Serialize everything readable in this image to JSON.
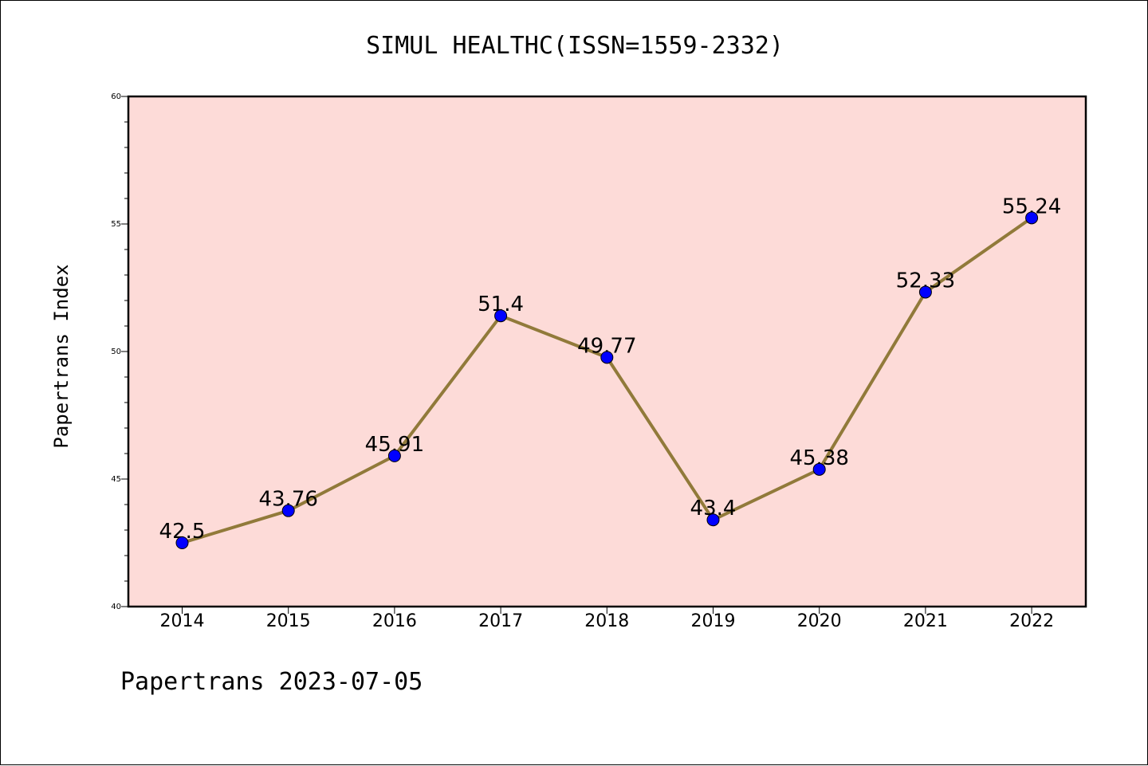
{
  "chart_data": {
    "type": "line",
    "title": "SIMUL HEALTHC(ISSN=1559-2332)",
    "xlabel": "",
    "ylabel": "Papertrans Index",
    "categories": [
      "2014",
      "2015",
      "2016",
      "2017",
      "2018",
      "2019",
      "2020",
      "2021",
      "2022"
    ],
    "series": [
      {
        "values": [
          42.5,
          43.76,
          45.91,
          51.4,
          49.77,
          43.4,
          45.38,
          52.33,
          55.24
        ],
        "data_labels": [
          "42.5",
          "43.76",
          "45.91",
          "51.4",
          "49.77",
          "43.4",
          "45.38",
          "52.33",
          "55.24"
        ],
        "line_color": "#917a3a",
        "marker_color": "#0000ff"
      }
    ],
    "ylim": [
      40,
      60
    ],
    "y_major_ticks": [
      40,
      45,
      50,
      55,
      60
    ],
    "y_minor_step": 1,
    "grid": false,
    "legend": "none",
    "plot_background": "#fddbd8",
    "footer": "Papertrans 2023-07-05"
  }
}
